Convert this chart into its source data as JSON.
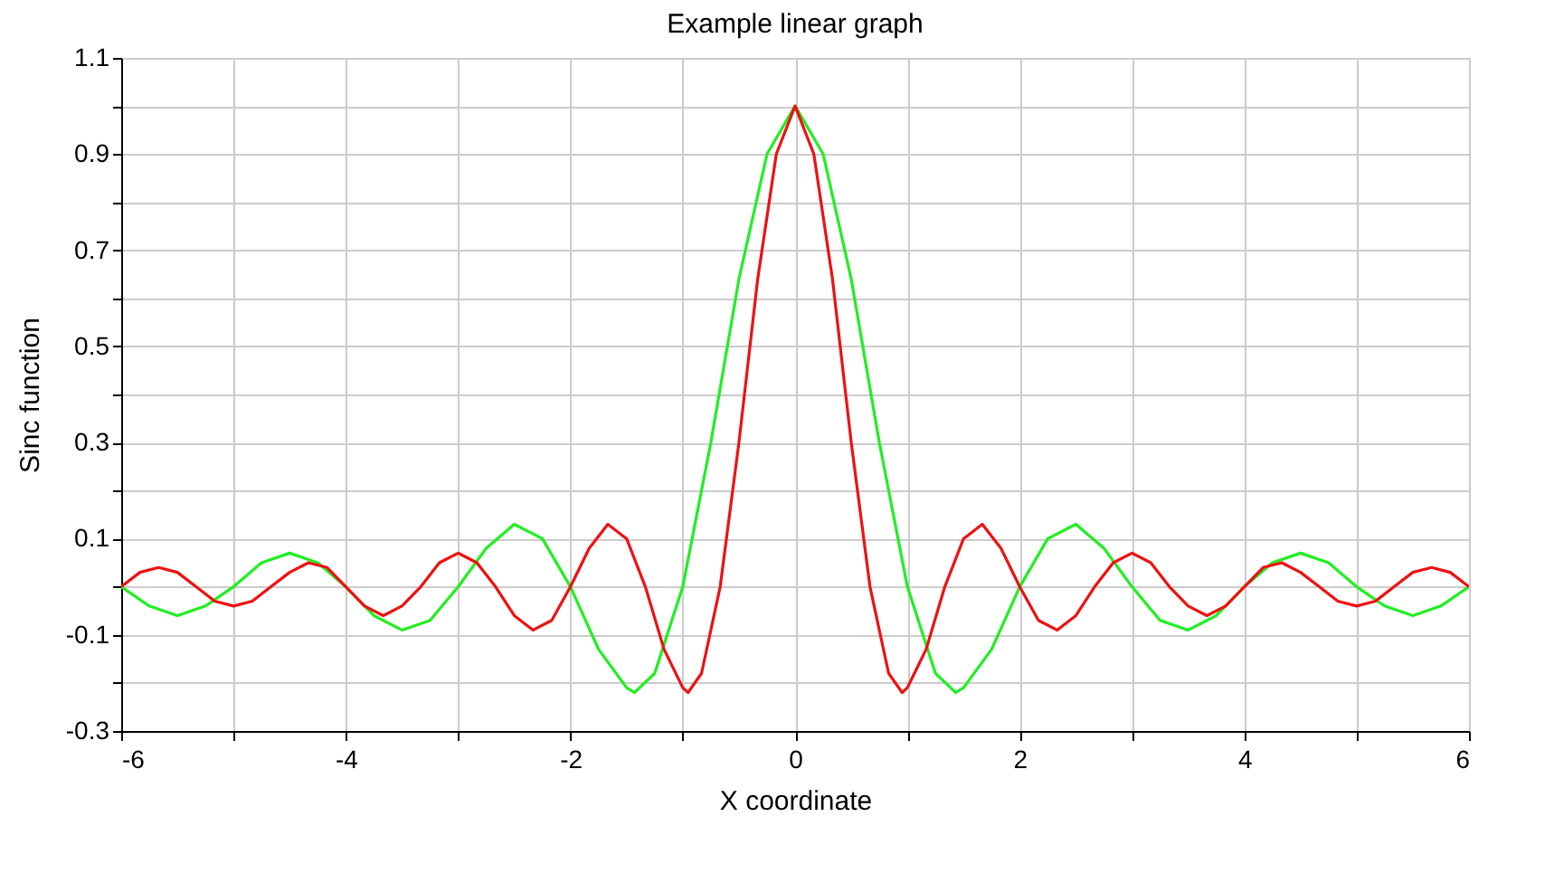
{
  "chart_data": {
    "type": "line",
    "title": "Example linear graph",
    "xlabel": "X coordinate",
    "ylabel": "Sinc function",
    "xlim": [
      -6,
      6
    ],
    "xticks": [
      -6,
      {
        "value": -5,
        "label": null
      },
      -4,
      {
        "value": -3,
        "label": null
      },
      -2,
      {
        "value": -1,
        "label": null
      },
      0,
      {
        "value": 1,
        "label": null
      },
      2,
      {
        "value": 3,
        "label": null
      },
      4,
      {
        "value": 5,
        "label": null
      },
      6
    ],
    "ylim": [
      -0.3,
      1.1
    ],
    "yticks": [
      -0.3,
      {
        "value": -0.2,
        "label": null
      },
      -0.1,
      {
        "value": 0,
        "label": null
      },
      0.1,
      {
        "value": 0.2,
        "label": null
      },
      0.3,
      {
        "value": 0.4,
        "label": null
      },
      0.5,
      {
        "value": 0.6,
        "label": null
      },
      0.7,
      {
        "value": 0.8,
        "label": null
      },
      0.9,
      {
        "value": 1.0,
        "label": null
      },
      1.1
    ],
    "grid": true,
    "legend": false,
    "marker": "none",
    "line_style": "solid",
    "series": [
      {
        "color": "#22ee22",
        "x": [
          -6,
          -5.75,
          -5.5,
          -5.25,
          -5,
          -4.75,
          -4.5,
          -4.25,
          -4,
          -3.75,
          -3.5,
          -3.25,
          -3,
          -2.75,
          -2.5,
          -2.25,
          -2,
          -1.75,
          -1.5,
          -1.43,
          -1.25,
          -1,
          -0.75,
          -0.5,
          -0.25,
          0,
          0.25,
          0.5,
          0.75,
          1,
          1.25,
          1.43,
          1.5,
          1.75,
          2,
          2.25,
          2.5,
          2.75,
          3,
          3.25,
          3.5,
          3.75,
          4,
          4.25,
          4.5,
          4.75,
          5,
          5.25,
          5.5,
          5.75,
          6
        ],
        "values": [
          0,
          -0.04,
          -0.06,
          -0.04,
          0,
          0.05,
          0.07,
          0.05,
          0,
          -0.06,
          -0.09,
          -0.07,
          0,
          0.08,
          0.13,
          0.1,
          0,
          -0.13,
          -0.21,
          -0.22,
          -0.18,
          0,
          0.3,
          0.64,
          0.9,
          1,
          0.9,
          0.64,
          0.3,
          0,
          -0.18,
          -0.22,
          -0.21,
          -0.13,
          0,
          0.1,
          0.13,
          0.08,
          0,
          -0.07,
          -0.09,
          -0.06,
          0,
          0.05,
          0.07,
          0.05,
          0,
          -0.04,
          -0.06,
          -0.04,
          0
        ]
      },
      {
        "color": "#ee1111",
        "x": [
          -6,
          -5.833,
          -5.667,
          -5.5,
          -5.333,
          -5.167,
          -5,
          -4.833,
          -4.667,
          -4.5,
          -4.333,
          -4.167,
          -4,
          -3.833,
          -3.667,
          -3.5,
          -3.333,
          -3.167,
          -3,
          -2.833,
          -2.667,
          -2.5,
          -2.333,
          -2.167,
          -2,
          -1.833,
          -1.667,
          -1.5,
          -1.333,
          -1.167,
          -1,
          -0.953,
          -0.833,
          -0.667,
          -0.5,
          -0.333,
          -0.167,
          0,
          0.167,
          0.333,
          0.5,
          0.667,
          0.833,
          0.953,
          1,
          1.167,
          1.333,
          1.5,
          1.667,
          1.833,
          2,
          2.167,
          2.333,
          2.5,
          2.667,
          2.833,
          3,
          3.167,
          3.333,
          3.5,
          3.667,
          3.833,
          4,
          4.167,
          4.333,
          4.5,
          4.667,
          4.833,
          5,
          5.167,
          5.333,
          5.5,
          5.667,
          5.833,
          6
        ],
        "values": [
          0,
          0.03,
          0.04,
          0.03,
          0,
          -0.03,
          -0.04,
          -0.03,
          0,
          0.03,
          0.05,
          0.04,
          0,
          -0.04,
          -0.06,
          -0.04,
          0,
          0.05,
          0.07,
          0.05,
          0,
          -0.06,
          -0.09,
          -0.07,
          0,
          0.08,
          0.13,
          0.1,
          0,
          -0.13,
          -0.21,
          -0.22,
          -0.18,
          0,
          0.3,
          0.64,
          0.9,
          1,
          0.9,
          0.64,
          0.3,
          0,
          -0.18,
          -0.22,
          -0.21,
          -0.13,
          0,
          0.1,
          0.13,
          0.08,
          0,
          -0.07,
          -0.09,
          -0.06,
          0,
          0.05,
          0.07,
          0.05,
          0,
          -0.04,
          -0.06,
          -0.04,
          0,
          0.04,
          0.05,
          0.03,
          0,
          -0.03,
          -0.04,
          -0.03,
          0,
          0.03,
          0.04,
          0.03,
          0
        ]
      }
    ]
  }
}
